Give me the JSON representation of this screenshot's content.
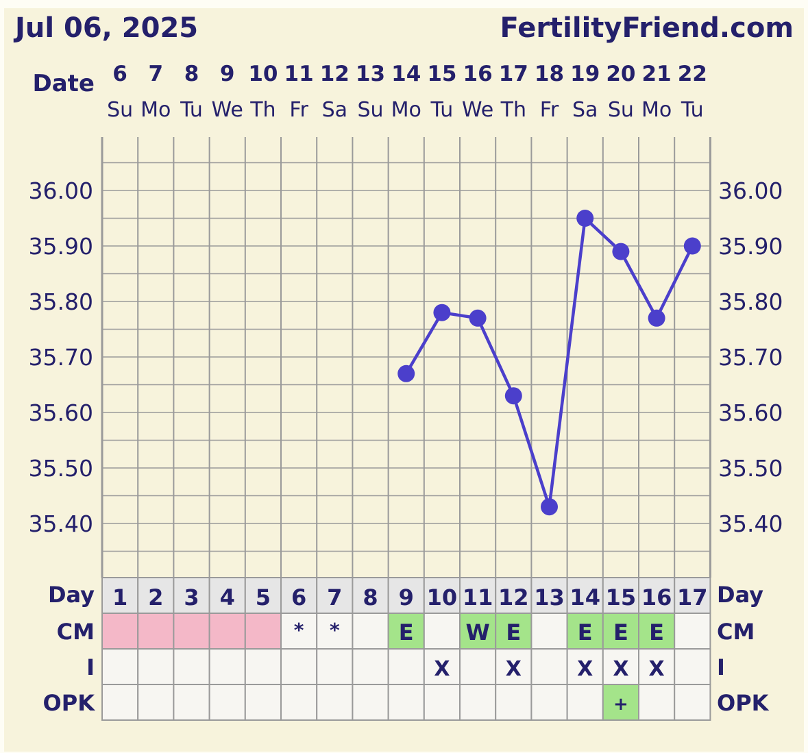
{
  "header": {
    "date": "Jul 06, 2025",
    "site": "FertilityFriend.com",
    "date_label": "Date"
  },
  "colors": {
    "background": "#f7f3dc",
    "border": "#fefdf5",
    "grid": "#9a9a9a",
    "line": "#4b3fcb",
    "text": "#24206b",
    "period": "#f4b8c8",
    "green": "#a4e48a",
    "row_bg": "#f7f6f2",
    "day_bg": "#e6e6e6"
  },
  "chart_data": {
    "type": "line",
    "dates": [
      "6",
      "7",
      "8",
      "9",
      "10",
      "11",
      "12",
      "13",
      "14",
      "15",
      "16",
      "17",
      "18",
      "19",
      "20",
      "21",
      "22"
    ],
    "weekdays": [
      "Su",
      "Mo",
      "Tu",
      "We",
      "Th",
      "Fr",
      "Sa",
      "Su",
      "Mo",
      "Tu",
      "We",
      "Th",
      "Fr",
      "Sa",
      "Su",
      "Mo",
      "Tu"
    ],
    "cycle_days": [
      "1",
      "2",
      "3",
      "4",
      "5",
      "6",
      "7",
      "8",
      "9",
      "10",
      "11",
      "12",
      "13",
      "14",
      "15",
      "16",
      "17"
    ],
    "yticks": [
      "36.00",
      "35.90",
      "35.80",
      "35.70",
      "35.60",
      "35.50",
      "35.40"
    ],
    "ylim": [
      35.32,
      36.09
    ],
    "temps": [
      null,
      null,
      null,
      null,
      null,
      null,
      null,
      null,
      35.67,
      35.78,
      35.77,
      35.63,
      35.43,
      35.95,
      35.89,
      35.77,
      35.9
    ],
    "rows": {
      "day_label": "Day",
      "cm_label": "CM",
      "i_label": "I",
      "opk_label": "OPK"
    },
    "period_days": [
      1,
      1,
      1,
      1,
      1,
      0,
      0,
      0,
      0,
      0,
      0,
      0,
      0,
      0,
      0,
      0,
      0
    ],
    "cm": [
      "",
      "",
      "",
      "",
      "",
      "*",
      "*",
      "",
      "E",
      "",
      "W",
      "E",
      "",
      "E",
      "E",
      "E",
      ""
    ],
    "intercourse": [
      "",
      "",
      "",
      "",
      "",
      "",
      "",
      "",
      "",
      "X",
      "",
      "X",
      "",
      "X",
      "X",
      "X",
      ""
    ],
    "opk": [
      "",
      "",
      "",
      "",
      "",
      "",
      "",
      "",
      "",
      "",
      "",
      "",
      "",
      "",
      "+",
      "",
      ""
    ]
  }
}
